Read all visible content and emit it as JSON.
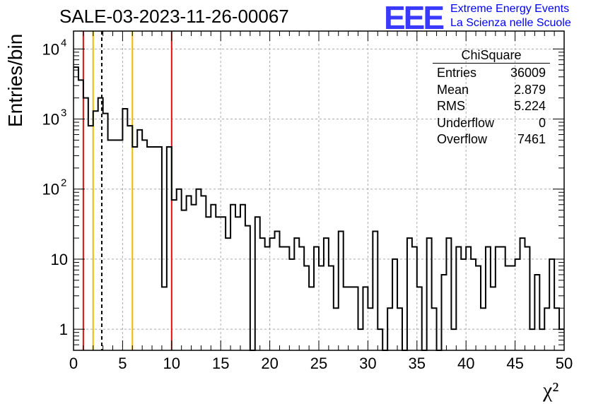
{
  "header": {
    "title": "SALE-03-2023-11-26-00067",
    "logo_mark": "EEE",
    "logo_line1": "Extreme Energy Events",
    "logo_line2": "La Scienza nelle Scuole"
  },
  "stats": {
    "title": "ChiSquare",
    "rows": [
      {
        "label": "Entries",
        "value": "36009"
      },
      {
        "label": "Mean",
        "value": "2.879"
      },
      {
        "label": "RMS",
        "value": "5.224"
      },
      {
        "label": "Underflow",
        "value": "0"
      },
      {
        "label": "Overflow",
        "value": "7461"
      }
    ]
  },
  "chart_data": {
    "type": "histogram",
    "title": "SALE-03-2023-11-26-00067",
    "xlabel": "χ²",
    "ylabel": "Entries/bin",
    "xlim": [
      0,
      50
    ],
    "ylim": [
      0.5,
      18000
    ],
    "yscale": "log",
    "grid": true,
    "bin_width": 0.5,
    "xticks": [
      0,
      5,
      10,
      15,
      20,
      25,
      30,
      35,
      40,
      45,
      50
    ],
    "yticks": [
      {
        "value": 1,
        "label": "1"
      },
      {
        "value": 10,
        "label": "10"
      },
      {
        "value": 100,
        "label": "10",
        "exp": "2"
      },
      {
        "value": 1000,
        "label": "10",
        "exp": "3"
      },
      {
        "value": 10000,
        "label": "10",
        "exp": "4"
      }
    ],
    "values": [
      5500,
      3600,
      2000,
      800,
      1300,
      2000,
      1200,
      500,
      500,
      500,
      1400,
      800,
      400,
      700,
      500,
      400,
      400,
      400,
      4,
      400,
      70,
      100,
      50,
      80,
      60,
      100,
      80,
      40,
      60,
      40,
      40,
      20,
      60,
      40,
      60,
      30,
      0,
      40,
      20,
      15,
      20,
      25,
      15,
      15,
      10,
      20,
      15,
      8,
      4,
      15,
      8,
      20,
      8,
      2,
      25,
      4,
      4,
      4,
      1,
      4,
      2,
      25,
      1,
      0,
      2,
      10,
      2,
      0,
      20,
      15,
      4,
      0,
      20,
      2,
      0,
      6,
      20,
      1,
      15,
      10,
      15,
      10,
      8,
      2,
      15,
      4,
      15,
      15,
      8,
      8,
      10,
      20,
      15,
      1,
      6,
      1,
      2,
      10,
      2,
      1
    ],
    "markers": [
      {
        "x": 1.0,
        "color": "#dd1111",
        "style": "solid"
      },
      {
        "x": 2.0,
        "color": "#eebb00",
        "style": "solid"
      },
      {
        "x": 2.879,
        "color": "#000000",
        "style": "dashed"
      },
      {
        "x": 6.0,
        "color": "#eebb00",
        "style": "solid"
      },
      {
        "x": 10.0,
        "color": "#dd1111",
        "style": "solid"
      }
    ]
  }
}
